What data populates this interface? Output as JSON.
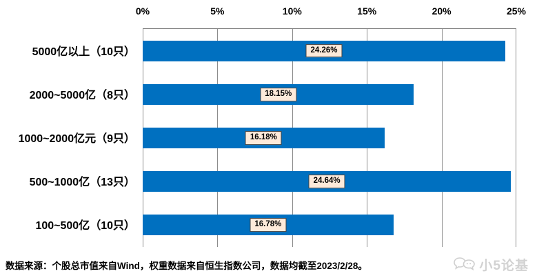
{
  "chart_data": {
    "type": "bar",
    "orientation": "horizontal",
    "title": "",
    "categories": [
      "5000亿以上（10只）",
      "2000~5000亿（8只）",
      "1000~2000亿元（9只）",
      "500~1000亿（13只）",
      "100~500亿（10只）"
    ],
    "values": [
      24.26,
      18.15,
      16.18,
      24.64,
      16.78
    ],
    "data_labels": [
      "24.26%",
      "18.15%",
      "16.18%",
      "24.64%",
      "16.78%"
    ],
    "x_ticks": [
      "0%",
      "5%",
      "10%",
      "15%",
      "20%",
      "25%"
    ],
    "xlim": [
      0,
      25
    ],
    "grid": true,
    "legend": "none",
    "bar_color": "#0070C0",
    "data_label_bg": "#FDEADA"
  },
  "footer": {
    "source_note": "数据来源：个股总市值来自Wind，权重数据来自恒生指数公司，数据均截至2023/2/28。"
  },
  "watermark": {
    "text": "小5论基"
  }
}
